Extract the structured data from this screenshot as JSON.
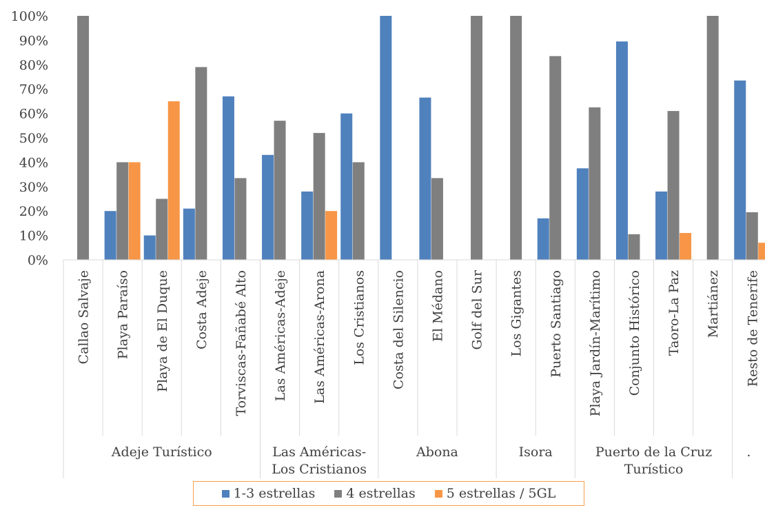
{
  "chart_data": {
    "type": "bar",
    "categories": [
      "Callao Salvaje",
      "Playa Paraíso",
      "Playa de El Duque",
      "Costa Adeje",
      "Torviscas-Fañabé Alto",
      "Las Américas-Adeje",
      "Las Américas-Arona",
      "Los Cristianos",
      "Costa del Silencio",
      "El Médano",
      "Golf del Sur",
      "Los Gigantes",
      "Puerto Santiago",
      "Playa Jardín-Marítimo",
      "Conjunto Histórico",
      "Taoro-La Paz",
      "Martiánez",
      "Resto de Tenerife"
    ],
    "groups": [
      {
        "label": "Adeje Turístico",
        "start": 0,
        "end": 4
      },
      {
        "label": "Las Américas-Los Cristianos",
        "lines": [
          "Las Américas-",
          "Los Cristianos"
        ],
        "start": 5,
        "end": 7
      },
      {
        "label": "Abona",
        "start": 8,
        "end": 10
      },
      {
        "label": "Isora",
        "start": 11,
        "end": 12
      },
      {
        "label": "Puerto de la Cruz Turístico",
        "lines": [
          "Puerto de la Cruz",
          "Turístico"
        ],
        "start": 13,
        "end": 16
      },
      {
        "label": ".",
        "start": 17,
        "end": 17
      }
    ],
    "series": [
      {
        "name": "1-3 estrellas",
        "color": "#4f81bd",
        "values": [
          0,
          0.2,
          0.1,
          0.21,
          0.67,
          0.43,
          0.28,
          0.6,
          1.0,
          0.665,
          0,
          0,
          0.17,
          0.375,
          0.895,
          0.28,
          0,
          0.735
        ]
      },
      {
        "name": "4 estrellas",
        "color": "#7f7f7f",
        "values": [
          1.0,
          0.4,
          0.25,
          0.79,
          0.335,
          0.57,
          0.52,
          0.4,
          0,
          0.335,
          1.0,
          1.0,
          0.835,
          0.625,
          0.105,
          0.61,
          1.0,
          0.195
        ]
      },
      {
        "name": "5 estrellas / 5GL",
        "color": "#f79646",
        "values": [
          0,
          0.4,
          0.65,
          0,
          0,
          0,
          0.2,
          0,
          0,
          0,
          0,
          0,
          0,
          0,
          0,
          0.11,
          0,
          0.07
        ]
      }
    ],
    "ylim": [
      0,
      1
    ],
    "yticks": [
      "0%",
      "10%",
      "20%",
      "30%",
      "40%",
      "50%",
      "60%",
      "70%",
      "80%",
      "90%",
      "100%"
    ],
    "grid": false,
    "legend_position": "bottom"
  }
}
